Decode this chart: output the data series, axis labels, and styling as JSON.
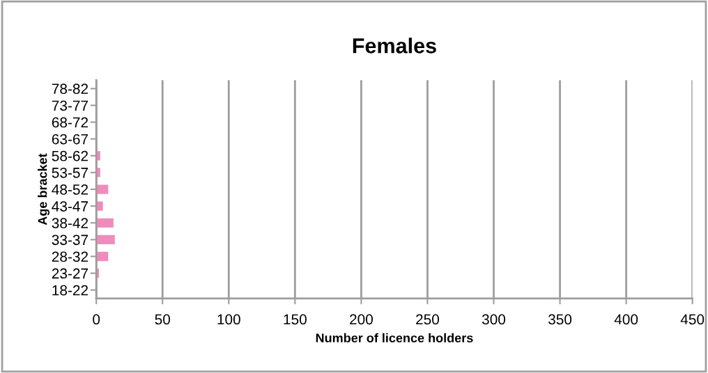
{
  "chart_data": {
    "type": "bar",
    "orientation": "horizontal",
    "title": "Females",
    "xlabel": "Number of licence holders",
    "ylabel": "Age bracket",
    "categories": [
      "78-82",
      "73-77",
      "68-72",
      "63-67",
      "58-62",
      "53-57",
      "48-52",
      "43-47",
      "38-42",
      "33-37",
      "28-32",
      "23-27",
      "18-22"
    ],
    "values": [
      0,
      0,
      0,
      null,
      3,
      3,
      9,
      5,
      13,
      14,
      9,
      2,
      0
    ],
    "color": "#f08cbc",
    "xlim": [
      0,
      450
    ],
    "xticks": [
      0,
      50,
      100,
      150,
      200,
      250,
      300,
      350,
      400,
      450
    ],
    "grid": "x",
    "legend": false
  }
}
